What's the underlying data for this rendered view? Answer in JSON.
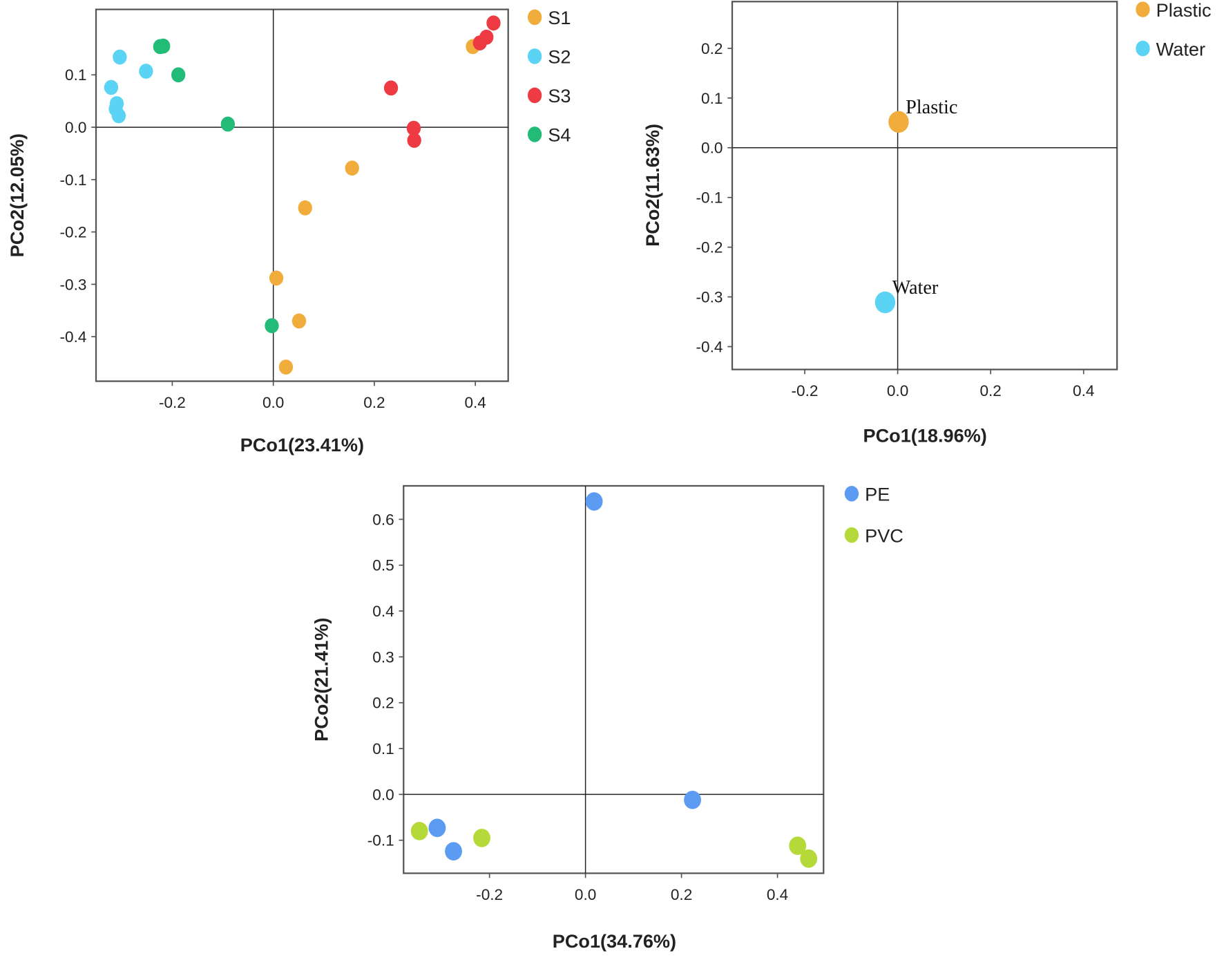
{
  "chart_data": [
    {
      "type": "scatter",
      "title": "",
      "xlabel": "PCo1(23.41%)",
      "ylabel": "PCo2(12.05%)",
      "xlim": [
        -0.351,
        0.465
      ],
      "ylim": [
        -0.485,
        0.225
      ],
      "xticks": [
        -0.2,
        0.0,
        0.2,
        0.4
      ],
      "xtick_labels": [
        "-0.2",
        "0.0",
        "0.2",
        "0.4"
      ],
      "yticks": [
        0.1,
        0.0,
        -0.1,
        -0.2,
        -0.3,
        -0.4
      ],
      "ytick_labels": [
        "0.1",
        "0.0",
        "-0.1",
        "-0.2",
        "-0.3",
        "-0.4"
      ],
      "grid": false,
      "zero_lines": true,
      "legend_position": "right-top",
      "series": [
        {
          "name": "S1",
          "color": "#f0ad3c",
          "points": [
            [
              0.395,
              0.154
            ],
            [
              0.156,
              -0.078
            ],
            [
              0.063,
              -0.154
            ],
            [
              0.006,
              -0.288
            ],
            [
              0.051,
              -0.37
            ],
            [
              0.025,
              -0.458
            ]
          ]
        },
        {
          "name": "S2",
          "color": "#5bd3f5",
          "points": [
            [
              -0.304,
              0.134
            ],
            [
              -0.252,
              0.107
            ],
            [
              -0.321,
              0.076
            ],
            [
              -0.31,
              0.045
            ],
            [
              -0.312,
              0.035
            ],
            [
              -0.306,
              0.022
            ]
          ]
        },
        {
          "name": "S3",
          "color": "#ee3a43",
          "points": [
            [
              0.436,
              0.199
            ],
            [
              0.422,
              0.172
            ],
            [
              0.409,
              0.161
            ],
            [
              0.233,
              0.075
            ],
            [
              0.278,
              -0.002
            ],
            [
              0.279,
              -0.025
            ]
          ]
        },
        {
          "name": "S4",
          "color": "#22bb77",
          "points": [
            [
              -0.224,
              0.154
            ],
            [
              -0.218,
              0.155
            ],
            [
              -0.188,
              0.1
            ],
            [
              -0.09,
              0.006
            ],
            [
              -0.003,
              -0.379
            ]
          ]
        }
      ]
    },
    {
      "type": "scatter",
      "title": "",
      "xlabel": "PCo1(18.96%)",
      "ylabel": "PCo2(11.63%)",
      "xlim": [
        -0.356,
        0.472
      ],
      "ylim": [
        -0.446,
        0.294
      ],
      "xticks": [
        -0.2,
        0.0,
        0.2,
        0.4
      ],
      "xtick_labels": [
        "-0.2",
        "0.0",
        "0.2",
        "0.4"
      ],
      "yticks": [
        0.2,
        0.1,
        0.0,
        -0.1,
        -0.2,
        -0.3,
        -0.4
      ],
      "ytick_labels": [
        "0.2",
        "0.1",
        "0.0",
        "-0.1",
        "-0.2",
        "-0.3",
        "-0.4"
      ],
      "grid": false,
      "zero_lines": true,
      "legend_position": "right-top",
      "series": [
        {
          "name": "Plastic",
          "color": "#f0ad3c",
          "points": [
            [
              0.002,
              0.052
            ]
          ],
          "point_label": "Plastic"
        },
        {
          "name": "Water",
          "color": "#5bd3f5",
          "points": [
            [
              -0.027,
              -0.311
            ]
          ],
          "point_label": "Water"
        }
      ]
    },
    {
      "type": "scatter",
      "title": "",
      "xlabel": "PCo1(34.76%)",
      "ylabel": "PCo2(21.41%)",
      "xlim": [
        -0.379,
        0.496
      ],
      "ylim": [
        -0.172,
        0.673
      ],
      "xticks": [
        -0.2,
        0.0,
        0.2,
        0.4
      ],
      "xtick_labels": [
        "-0.2",
        "0.0",
        "0.2",
        "0.4"
      ],
      "yticks": [
        0.6,
        0.5,
        0.4,
        0.3,
        0.2,
        0.1,
        0.0,
        -0.1
      ],
      "ytick_labels": [
        "0.6",
        "0.5",
        "0.4",
        "0.3",
        "0.2",
        "0.1",
        "0.0",
        "-0.1"
      ],
      "grid": false,
      "zero_lines": true,
      "legend_position": "right-top",
      "series": [
        {
          "name": "PE",
          "color": "#5b9cf2",
          "points": [
            [
              0.018,
              0.639
            ],
            [
              0.223,
              -0.012
            ],
            [
              -0.309,
              -0.073
            ],
            [
              -0.275,
              -0.124
            ]
          ]
        },
        {
          "name": "PVC",
          "color": "#b6d93a",
          "points": [
            [
              -0.346,
              -0.08
            ],
            [
              -0.216,
              -0.095
            ],
            [
              0.442,
              -0.112
            ],
            [
              0.465,
              -0.14
            ]
          ]
        }
      ]
    }
  ]
}
